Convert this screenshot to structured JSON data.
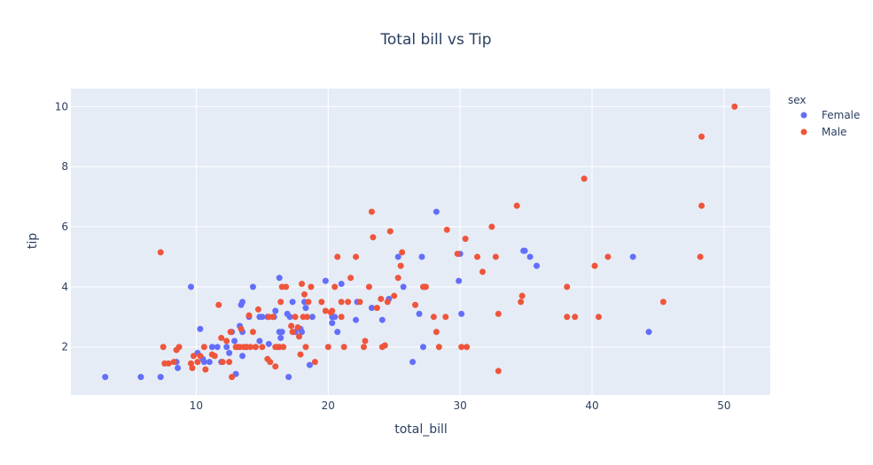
{
  "chart_data": {
    "type": "scatter",
    "title": "Total bill vs Tip",
    "xlabel": "total_bill",
    "ylabel": "tip",
    "xlim": [
      0.5,
      53.5
    ],
    "ylim": [
      0.4,
      10.6
    ],
    "xticks": [
      10,
      20,
      30,
      40,
      50
    ],
    "yticks": [
      2,
      4,
      6,
      8,
      10
    ],
    "grid": true,
    "legend_title": "sex",
    "legend_position": "top-right",
    "background_color": "#E5ECF6",
    "grid_color": "#ffffff",
    "series": [
      {
        "name": "Female",
        "color": "#636EFA",
        "points": [
          [
            3.1,
            1.0
          ],
          [
            5.8,
            1.0
          ],
          [
            7.3,
            1.0
          ],
          [
            8.5,
            1.5
          ],
          [
            8.6,
            1.3
          ],
          [
            9.6,
            4.0
          ],
          [
            10.1,
            1.8
          ],
          [
            10.3,
            2.6
          ],
          [
            10.5,
            1.6
          ],
          [
            10.6,
            1.5
          ],
          [
            11.0,
            1.5
          ],
          [
            11.2,
            2.0
          ],
          [
            11.6,
            2.0
          ],
          [
            11.9,
            1.5
          ],
          [
            12.3,
            2.0
          ],
          [
            12.5,
            1.8
          ],
          [
            12.7,
            2.5
          ],
          [
            12.9,
            2.2
          ],
          [
            13.0,
            1.1
          ],
          [
            13.3,
            2.7
          ],
          [
            13.4,
            3.4
          ],
          [
            13.5,
            2.5
          ],
          [
            13.5,
            3.5
          ],
          [
            13.5,
            1.7
          ],
          [
            13.8,
            2.0
          ],
          [
            14.0,
            3.0
          ],
          [
            14.3,
            4.0
          ],
          [
            14.5,
            2.0
          ],
          [
            14.8,
            3.0
          ],
          [
            14.8,
            2.2
          ],
          [
            15.0,
            3.0
          ],
          [
            15.4,
            3.0
          ],
          [
            15.5,
            2.1
          ],
          [
            15.9,
            3.0
          ],
          [
            16.0,
            3.2
          ],
          [
            16.2,
            2.0
          ],
          [
            16.3,
            4.3
          ],
          [
            16.3,
            2.5
          ],
          [
            16.4,
            2.3
          ],
          [
            16.5,
            2.5
          ],
          [
            16.9,
            3.1
          ],
          [
            17.0,
            1.0
          ],
          [
            17.1,
            3.0
          ],
          [
            17.3,
            3.5
          ],
          [
            17.5,
            2.5
          ],
          [
            17.9,
            2.6
          ],
          [
            18.0,
            2.5
          ],
          [
            18.2,
            3.5
          ],
          [
            18.3,
            3.3
          ],
          [
            18.6,
            1.4
          ],
          [
            18.8,
            3.0
          ],
          [
            19.8,
            4.2
          ],
          [
            20.3,
            3.0
          ],
          [
            20.3,
            2.8
          ],
          [
            20.5,
            3.0
          ],
          [
            20.7,
            2.5
          ],
          [
            21.0,
            4.1
          ],
          [
            22.1,
            2.9
          ],
          [
            22.2,
            3.5
          ],
          [
            23.3,
            3.3
          ],
          [
            24.1,
            2.9
          ],
          [
            24.6,
            3.6
          ],
          [
            25.3,
            5.0
          ],
          [
            25.7,
            4.0
          ],
          [
            26.4,
            1.5
          ],
          [
            26.9,
            3.1
          ],
          [
            27.1,
            5.0
          ],
          [
            27.2,
            2.0
          ],
          [
            27.3,
            4.0
          ],
          [
            28.2,
            6.5
          ],
          [
            29.9,
            4.2
          ],
          [
            30.0,
            5.1
          ],
          [
            30.1,
            3.1
          ],
          [
            34.8,
            5.2
          ],
          [
            34.9,
            5.2
          ],
          [
            35.3,
            5.0
          ],
          [
            35.8,
            4.7
          ],
          [
            43.1,
            5.0
          ],
          [
            44.3,
            2.5
          ]
        ]
      },
      {
        "name": "Male",
        "color": "#EF553B",
        "points": [
          [
            7.3,
            5.15
          ],
          [
            7.5,
            2.0
          ],
          [
            7.6,
            1.45
          ],
          [
            7.9,
            1.45
          ],
          [
            8.3,
            1.5
          ],
          [
            8.5,
            1.9
          ],
          [
            8.7,
            2.0
          ],
          [
            9.6,
            1.45
          ],
          [
            9.7,
            1.3
          ],
          [
            9.8,
            1.7
          ],
          [
            10.1,
            1.5
          ],
          [
            10.3,
            1.7
          ],
          [
            10.6,
            2.0
          ],
          [
            10.7,
            1.25
          ],
          [
            11.2,
            1.75
          ],
          [
            11.4,
            1.7
          ],
          [
            11.7,
            3.4
          ],
          [
            11.9,
            2.3
          ],
          [
            12.0,
            1.5
          ],
          [
            12.3,
            2.2
          ],
          [
            12.5,
            1.5
          ],
          [
            12.6,
            2.5
          ],
          [
            12.7,
            1.0
          ],
          [
            13.0,
            2.0
          ],
          [
            13.1,
            2.0
          ],
          [
            13.3,
            2.0
          ],
          [
            13.4,
            2.6
          ],
          [
            13.6,
            2.0
          ],
          [
            13.8,
            2.0
          ],
          [
            14.0,
            3.05
          ],
          [
            14.1,
            2.0
          ],
          [
            14.3,
            2.5
          ],
          [
            14.5,
            2.0
          ],
          [
            14.7,
            3.25
          ],
          [
            15.0,
            2.0
          ],
          [
            15.4,
            1.6
          ],
          [
            15.5,
            3.0
          ],
          [
            15.6,
            1.5
          ],
          [
            15.8,
            3.0
          ],
          [
            16.0,
            2.0
          ],
          [
            16.0,
            1.35
          ],
          [
            16.3,
            2.0
          ],
          [
            16.4,
            3.5
          ],
          [
            16.5,
            4.0
          ],
          [
            16.6,
            2.0
          ],
          [
            16.8,
            4.0
          ],
          [
            17.2,
            2.7
          ],
          [
            17.3,
            2.5
          ],
          [
            17.5,
            3.0
          ],
          [
            17.7,
            2.65
          ],
          [
            17.8,
            2.35
          ],
          [
            17.9,
            1.75
          ],
          [
            18.0,
            4.1
          ],
          [
            18.1,
            3.0
          ],
          [
            18.2,
            3.75
          ],
          [
            18.3,
            2.0
          ],
          [
            18.4,
            3.0
          ],
          [
            18.5,
            3.5
          ],
          [
            18.7,
            4.0
          ],
          [
            19.0,
            1.5
          ],
          [
            19.5,
            3.5
          ],
          [
            19.8,
            3.2
          ],
          [
            20.0,
            2.0
          ],
          [
            20.2,
            3.15
          ],
          [
            20.3,
            3.2
          ],
          [
            20.5,
            4.0
          ],
          [
            20.7,
            5.0
          ],
          [
            21.0,
            3.5
          ],
          [
            21.0,
            3.0
          ],
          [
            21.2,
            2.0
          ],
          [
            21.5,
            3.5
          ],
          [
            21.7,
            4.3
          ],
          [
            22.1,
            5.0
          ],
          [
            22.4,
            3.5
          ],
          [
            22.7,
            2.0
          ],
          [
            22.8,
            2.2
          ],
          [
            23.1,
            4.0
          ],
          [
            23.3,
            6.5
          ],
          [
            23.4,
            5.65
          ],
          [
            23.7,
            3.3
          ],
          [
            24.0,
            3.6
          ],
          [
            24.1,
            2.0
          ],
          [
            24.3,
            2.05
          ],
          [
            24.5,
            3.5
          ],
          [
            24.7,
            5.85
          ],
          [
            25.0,
            3.7
          ],
          [
            25.3,
            4.3
          ],
          [
            25.5,
            4.7
          ],
          [
            25.6,
            5.15
          ],
          [
            26.6,
            3.4
          ],
          [
            27.2,
            4.0
          ],
          [
            27.4,
            4.0
          ],
          [
            28.0,
            3.0
          ],
          [
            28.2,
            2.5
          ],
          [
            28.4,
            2.0
          ],
          [
            28.9,
            3.0
          ],
          [
            29.0,
            5.9
          ],
          [
            29.8,
            5.1
          ],
          [
            30.1,
            2.0
          ],
          [
            30.4,
            5.6
          ],
          [
            30.5,
            2.0
          ],
          [
            31.3,
            5.0
          ],
          [
            31.7,
            4.5
          ],
          [
            32.4,
            6.0
          ],
          [
            32.7,
            5.0
          ],
          [
            32.9,
            3.1
          ],
          [
            32.9,
            1.2
          ],
          [
            34.3,
            6.7
          ],
          [
            34.6,
            3.5
          ],
          [
            34.7,
            3.7
          ],
          [
            38.1,
            4.0
          ],
          [
            38.1,
            3.0
          ],
          [
            38.7,
            3.0
          ],
          [
            39.4,
            7.6
          ],
          [
            40.2,
            4.7
          ],
          [
            40.5,
            3.0
          ],
          [
            41.2,
            5.0
          ],
          [
            45.4,
            3.5
          ],
          [
            48.2,
            5.0
          ],
          [
            48.3,
            6.7
          ],
          [
            48.3,
            9.0
          ],
          [
            50.8,
            10.0
          ]
        ]
      }
    ]
  }
}
